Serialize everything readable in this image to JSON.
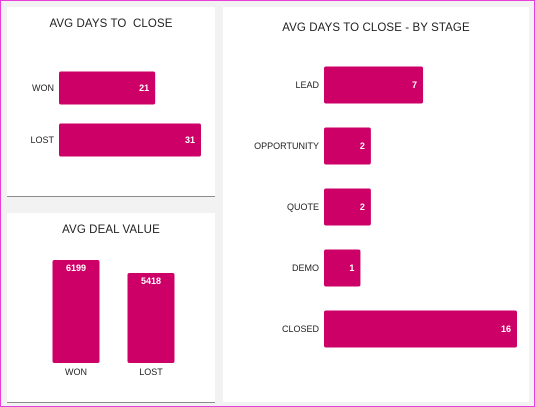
{
  "colors": {
    "bar": "#cc0066",
    "frame_border": "#e83fd8",
    "background": "#f2f2f2"
  },
  "chart_data": [
    {
      "id": "avg-days-to-close",
      "type": "bar",
      "orientation": "horizontal",
      "title": "AVG DAYS TO  CLOSE",
      "categories": [
        "WON",
        "LOST"
      ],
      "values": [
        21,
        31
      ],
      "xlim": [
        0,
        31
      ],
      "grid": false,
      "data_labels": true
    },
    {
      "id": "avg-deal-value",
      "type": "bar",
      "orientation": "vertical",
      "title": "AVG DEAL VALUE",
      "categories": [
        "WON",
        "LOST"
      ],
      "values": [
        6199,
        5418
      ],
      "ylim": [
        0,
        6199
      ],
      "grid": false,
      "data_labels": true
    },
    {
      "id": "avg-days-to-close-by-stage",
      "type": "bar",
      "orientation": "horizontal",
      "title": "AVG DAYS TO CLOSE - BY STAGE",
      "categories": [
        "LEAD",
        "OPPORTUNITY",
        "QUOTE",
        "DEMO",
        "CLOSED"
      ],
      "values": [
        7,
        2,
        2,
        1,
        16
      ],
      "xlim": [
        0,
        16
      ],
      "grid": false,
      "data_labels": true
    }
  ]
}
